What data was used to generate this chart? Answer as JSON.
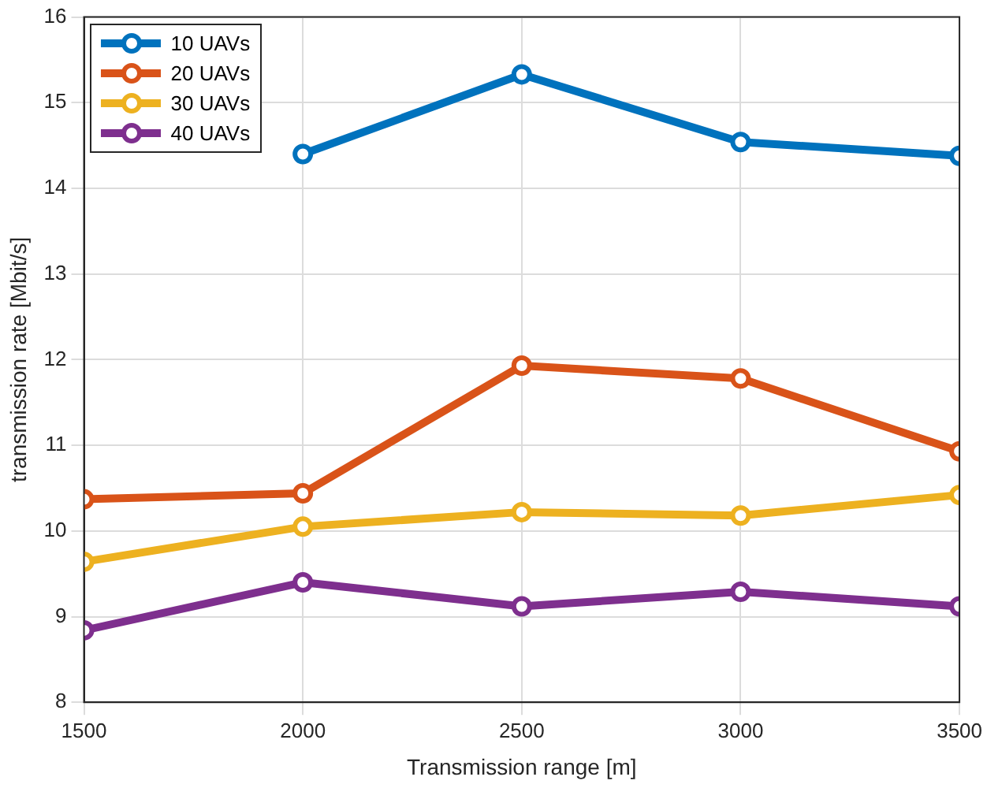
{
  "chart_data": {
    "type": "line",
    "xlabel": "Transmission range [m]",
    "ylabel": "transmission rate [Mbit/s]",
    "x": [
      1500,
      2000,
      2500,
      3000,
      3500
    ],
    "series": [
      {
        "name": "10 UAVs",
        "color": "#0072bd",
        "values": [
          null,
          14.4,
          15.33,
          14.54,
          14.38
        ]
      },
      {
        "name": "20 UAVs",
        "color": "#d95319",
        "values": [
          10.37,
          10.44,
          11.93,
          11.78,
          10.93
        ]
      },
      {
        "name": "30 UAVs",
        "color": "#edb120",
        "values": [
          9.64,
          10.05,
          10.22,
          10.18,
          10.42
        ]
      },
      {
        "name": "40 UAVs",
        "color": "#7e2f8e",
        "values": [
          8.84,
          9.4,
          9.12,
          9.29,
          9.12
        ]
      }
    ],
    "xlim": [
      1500,
      3500
    ],
    "xticks": [
      1500,
      2000,
      2500,
      3000,
      3500
    ],
    "ylim": [
      8,
      16
    ],
    "yticks": [
      8,
      9,
      10,
      11,
      12,
      13,
      14,
      15,
      16
    ],
    "grid": true,
    "legend": "top left",
    "marker": "circle",
    "line_style": "solid"
  }
}
